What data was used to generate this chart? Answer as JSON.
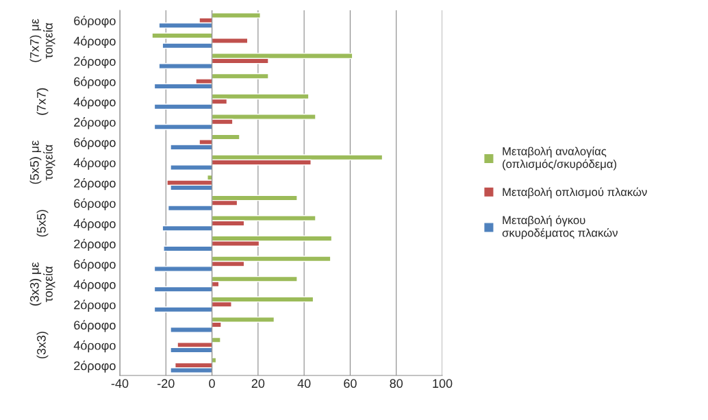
{
  "chart_data": {
    "type": "bar",
    "orientation": "horizontal",
    "categories": [
      "6όροφο",
      "4όροφο",
      "2όροφο",
      "6όροφο",
      "4όροφο",
      "2όροφο",
      "6όροφο",
      "4όροφο",
      "2όροφο",
      "6όροφο",
      "4όροφο",
      "2όροφο",
      "6όροφο",
      "4όροφο",
      "2όροφο",
      "6όροφο",
      "4όροφο",
      "2όροφο"
    ],
    "series": [
      {
        "name": "Μεταβολή αναλογίας\n(οπλισμός/σκυρόδεμα)",
        "color": "#9bbb59",
        "values": [
          21,
          -26,
          61,
          24.5,
          42,
          45,
          12,
          74,
          -2,
          37,
          45,
          52,
          51.5,
          37,
          44,
          27,
          3.7,
          1.8
        ]
      },
      {
        "name": "Μεταβολή οπλισμού πλακών",
        "color": "#c0504d",
        "values": [
          -5.5,
          15.5,
          24.5,
          -7,
          6.5,
          9,
          -5.5,
          43,
          -19.5,
          11,
          14,
          20.5,
          14,
          3,
          8.5,
          4,
          -15,
          -16
        ]
      },
      {
        "name": "Μεταβολή όγκου\nσκυροδέματος πλακών",
        "color": "#4f81bd",
        "values": [
          -23,
          -21.5,
          -23,
          -25,
          -25,
          -25,
          -18,
          -18,
          -18,
          -19,
          -21.5,
          -21,
          -25,
          -25,
          -25,
          -18,
          -18,
          -18
        ]
      }
    ],
    "annotations": [
      "(7x7) με\nτοιχεία",
      "(7x7)",
      "(5x5) με\nτοιχεία",
      "(5x5)",
      "(3x3) με\nτοιχεία",
      "(3x3)"
    ],
    "xlim": [
      -40,
      100
    ],
    "xticks": [
      -40,
      -20,
      0,
      20,
      40,
      60,
      80,
      100
    ],
    "grid": "x",
    "legend": "right"
  }
}
